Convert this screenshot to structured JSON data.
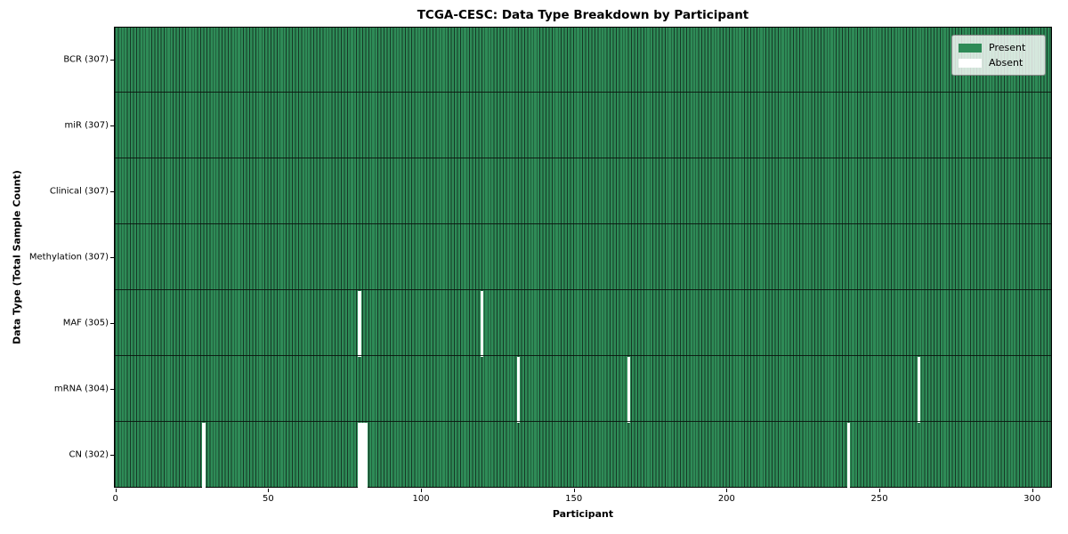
{
  "chart_data": {
    "type": "heatmap",
    "title": "TCGA-CESC: Data Type Breakdown by Participant",
    "xlabel": "Participant",
    "ylabel": "Data Type (Total Sample Count)",
    "n_participants": 307,
    "xlim": [
      -0.5,
      306.5
    ],
    "x_ticks": [
      0,
      50,
      100,
      150,
      200,
      250,
      300
    ],
    "grid": false,
    "legend_position": "upper right",
    "legend": [
      {
        "label": "Present",
        "color": "#2e8b57"
      },
      {
        "label": "Absent",
        "color": "#ffffff"
      }
    ],
    "rows": [
      {
        "label": "BCR (307)",
        "data_type": "BCR",
        "total_sample_count": 307,
        "absent_participants": []
      },
      {
        "label": "miR (307)",
        "data_type": "miR",
        "total_sample_count": 307,
        "absent_participants": []
      },
      {
        "label": "Clinical (307)",
        "data_type": "Clinical",
        "total_sample_count": 307,
        "absent_participants": []
      },
      {
        "label": "Methylation (307)",
        "data_type": "Methylation",
        "total_sample_count": 307,
        "absent_participants": []
      },
      {
        "label": "MAF (305)",
        "data_type": "MAF",
        "total_sample_count": 305,
        "absent_participants": [
          80,
          120
        ]
      },
      {
        "label": "mRNA (304)",
        "data_type": "mRNA",
        "total_sample_count": 304,
        "absent_participants": [
          132,
          168,
          263
        ]
      },
      {
        "label": "CN (302)",
        "data_type": "CN",
        "total_sample_count": 302,
        "absent_participants": [
          29,
          80,
          81,
          82,
          240
        ]
      }
    ],
    "colors": {
      "present": "#2e8b57",
      "absent": "#ffffff",
      "cell_edge": "#163826",
      "separator": "#0a140e",
      "legend_border": "#8a8a8a"
    }
  }
}
